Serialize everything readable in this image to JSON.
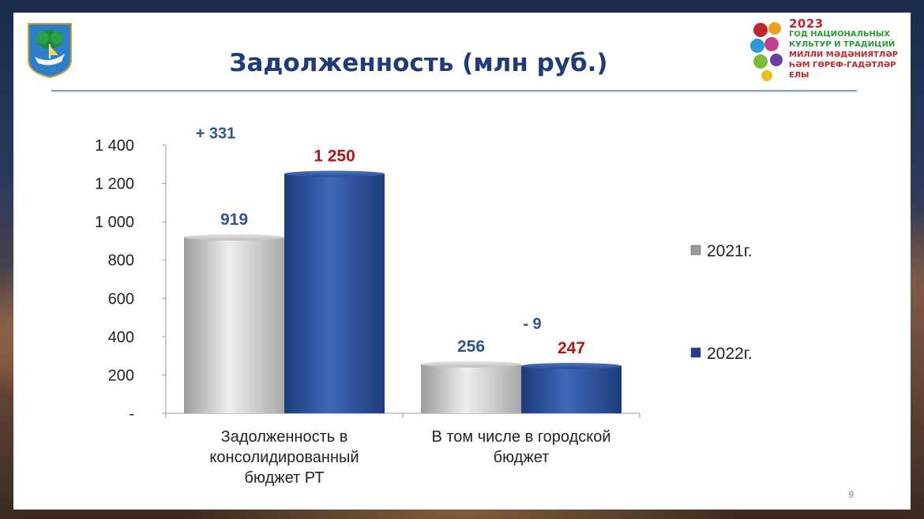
{
  "slide": {
    "title": "Задолженность (млн руб.)",
    "page_number": "9"
  },
  "year_logo": {
    "year": "2023",
    "line1": "ГОД НАЦИОНАЛЬНЫХ",
    "line2": "КУЛЬТУР И ТРАДИЦИЙ",
    "line3": "МИЛЛИ МӘДӘНИЯТЛӘР",
    "line4": "ҺӘМ ГӨРЕФ-ГАДӘТЛӘР ЕЛЫ"
  },
  "chart_data": {
    "type": "bar",
    "title": "Задолженность (млн руб.)",
    "categories": [
      [
        "Задолженность в",
        "консолидированный",
        "бюджет РТ"
      ],
      [
        "В том числе в городской",
        "бюджет"
      ]
    ],
    "series": [
      {
        "name": "2021г.",
        "values": [
          919,
          256
        ],
        "color": "#c8c8c8",
        "label_color": "#2e5394"
      },
      {
        "name": "2022г.",
        "values": [
          1250,
          247
        ],
        "color": "#254a92",
        "label_color": "#b01616"
      }
    ],
    "value_labels": [
      [
        "919",
        "1 250"
      ],
      [
        "256",
        "247"
      ]
    ],
    "change_labels": [
      "+ 331",
      "- 9"
    ],
    "y_ticks": [
      {
        "value": 0,
        "label": "-"
      },
      {
        "value": 200,
        "label": "200"
      },
      {
        "value": 400,
        "label": "400"
      },
      {
        "value": 600,
        "label": "600"
      },
      {
        "value": 800,
        "label": "800"
      },
      {
        "value": 1000,
        "label": "1 000"
      },
      {
        "value": 1200,
        "label": "1 200"
      },
      {
        "value": 1400,
        "label": "1 400"
      }
    ],
    "ylim": [
      0,
      1400
    ],
    "grid": false,
    "legend_position": "right"
  }
}
